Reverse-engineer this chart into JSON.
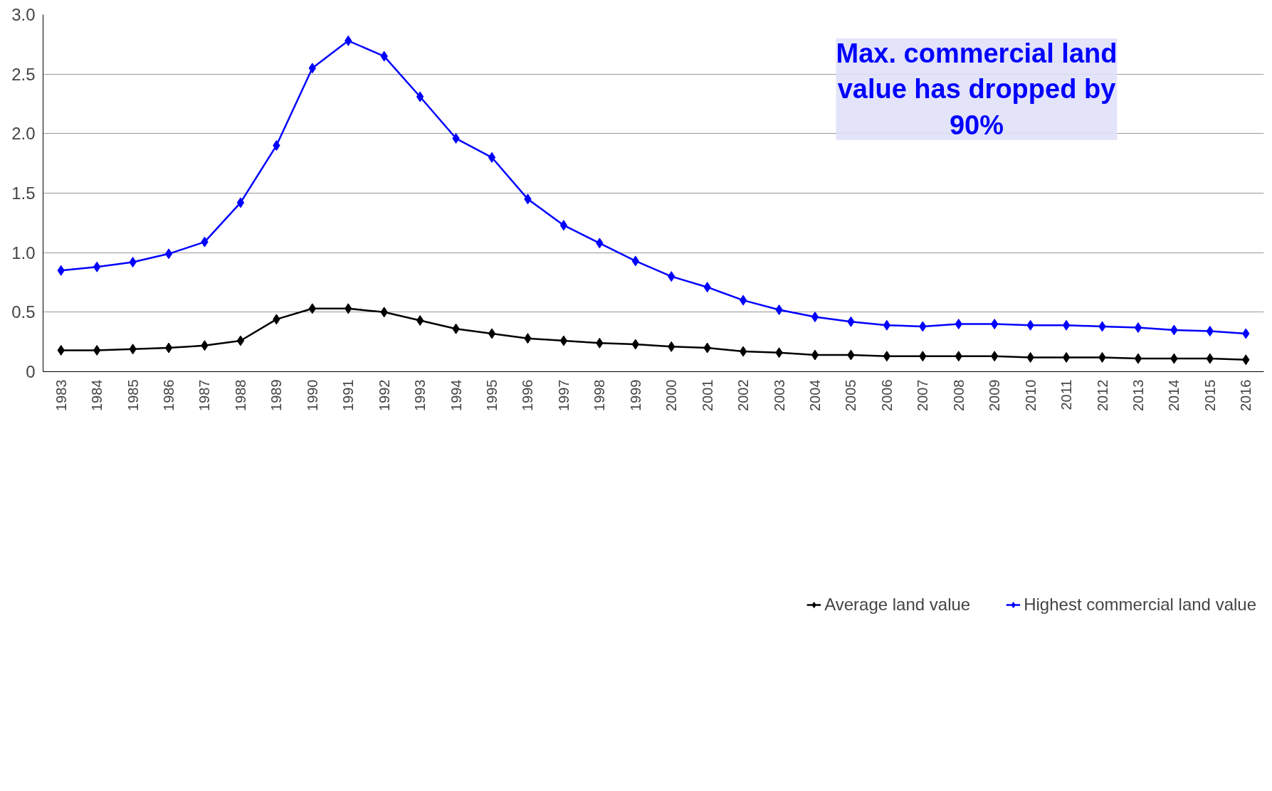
{
  "chart_data": {
    "type": "line",
    "categories": [
      "1983",
      "1984",
      "1985",
      "1986",
      "1987",
      "1988",
      "1989",
      "1990",
      "1991",
      "1992",
      "1993",
      "1994",
      "1995",
      "1996",
      "1997",
      "1998",
      "1999",
      "2000",
      "2001",
      "2002",
      "2003",
      "2004",
      "2005",
      "2006",
      "2007",
      "2008",
      "2009",
      "2010",
      "2011",
      "2012",
      "2013",
      "2014",
      "2015",
      "2016"
    ],
    "series": [
      {
        "name": "Average land value",
        "color": "#000000",
        "values": [
          0.18,
          0.18,
          0.19,
          0.2,
          0.22,
          0.26,
          0.44,
          0.53,
          0.53,
          0.5,
          0.43,
          0.36,
          0.32,
          0.28,
          0.26,
          0.24,
          0.23,
          0.21,
          0.2,
          0.17,
          0.16,
          0.14,
          0.14,
          0.13,
          0.13,
          0.13,
          0.13,
          0.12,
          0.12,
          0.12,
          0.11,
          0.11,
          0.11,
          0.1
        ]
      },
      {
        "name": "Highest commercial land value",
        "color": "#0000ff",
        "values": [
          0.85,
          0.88,
          0.92,
          0.99,
          1.09,
          1.42,
          1.9,
          2.55,
          2.78,
          2.65,
          2.31,
          1.96,
          1.8,
          1.45,
          1.23,
          1.08,
          0.93,
          0.8,
          0.71,
          0.6,
          0.52,
          0.46,
          0.42,
          0.39,
          0.38,
          0.4,
          0.4,
          0.39,
          0.39,
          0.38,
          0.37,
          0.35,
          0.34,
          0.32
        ]
      }
    ],
    "ylim": [
      0,
      3
    ],
    "yticks": [
      0,
      {
        "value": 0.5,
        "label": "0.5"
      },
      {
        "value": 1,
        "label": "1.0"
      },
      {
        "value": 1.5,
        "label": "1.5"
      },
      {
        "value": 2,
        "label": "2.0"
      },
      {
        "value": 2.5,
        "label": "2.5"
      },
      {
        "value": 3,
        "label": "3.0"
      }
    ],
    "grid": "y",
    "legend": "bottom",
    "marker": "diamond",
    "line_style": "solid",
    "annotations": [
      "Max. commercial land value has dropped by 90%"
    ]
  }
}
